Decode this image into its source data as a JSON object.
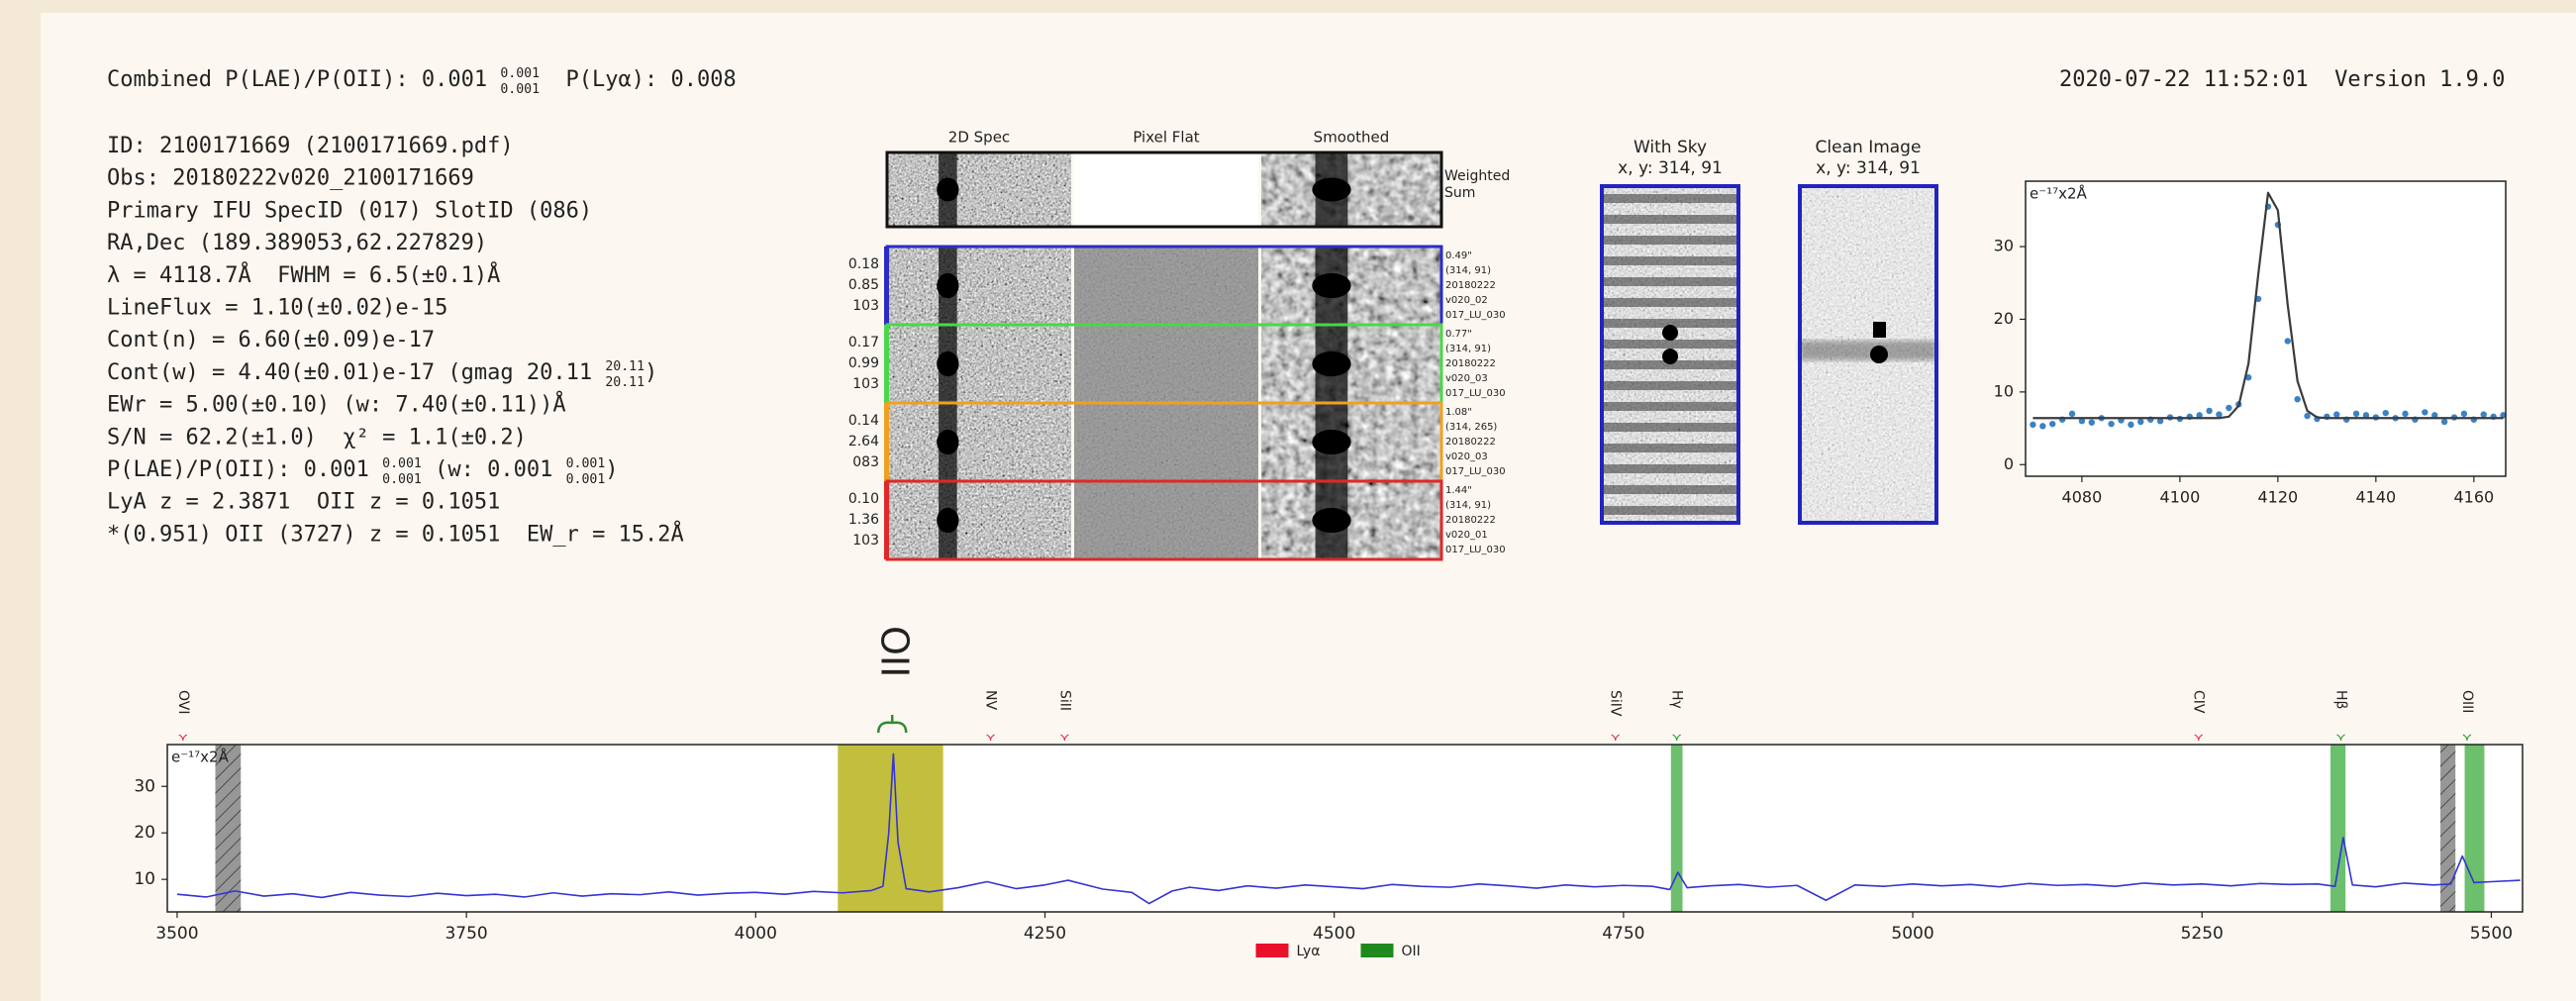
{
  "header": {
    "combined": [
      "Combined P(LAE)/P(OII): 0.001 ",
      {
        "sup": "0.001",
        "sub": "0.001"
      },
      "  P(Lyα): 0.008"
    ],
    "timestamp": "2020-07-22 11:52:01  Version 1.9.0"
  },
  "info_lines": [
    [
      "ID: 2100171669 (2100171669.pdf)"
    ],
    [
      "Obs: 20180222v020_2100171669"
    ],
    [
      "Primary IFU SpecID (017) SlotID (086)"
    ],
    [
      "RA,Dec (189.389053,62.227829)"
    ],
    [
      "λ = 4118.7Å  FWHM = 6.5(±0.1)Å"
    ],
    [
      "LineFlux = 1.10(±0.02)e-15"
    ],
    [
      "Cont(n) = 6.60(±0.09)e-17"
    ],
    [
      "Cont(w) = 4.40(±0.01)e-17 (gmag 20.11 ",
      {
        "sup": "20.11",
        "sub": "20.11"
      },
      ")"
    ],
    [
      "EWr = 5.00(±0.10) (w: 7.40(±0.11))Å"
    ],
    [
      "S/N = 62.2(±1.0)  χ² = 1.1(±0.2)"
    ],
    [
      "P(LAE)/P(OII): 0.001 ",
      {
        "sup": "0.001",
        "sub": "0.001"
      },
      " (w: 0.001 ",
      {
        "sup": "0.001",
        "sub": "0.001"
      },
      ")"
    ],
    [
      "LyA z = 2.3871  OII z = 0.1051"
    ],
    [
      "*(0.951) OII (3727) z = 0.1051  EW_r = 15.2Å"
    ]
  ],
  "cutouts": {
    "columns": [
      "2D Spec",
      "Pixel Flat",
      "Smoothed"
    ],
    "weighted_label": [
      "Weighted",
      "Sum"
    ],
    "rows": [
      {
        "color": "#2b2bc8",
        "left": [
          "0.18",
          "0.85",
          "103"
        ],
        "right": [
          "0.49\"",
          "(314, 91)",
          "20180222",
          "v020_02",
          "017_LU_030"
        ]
      },
      {
        "color": "#4cd64c",
        "left": [
          "0.17",
          "0.99",
          "103"
        ],
        "right": [
          "0.77\"",
          "(314, 91)",
          "20180222",
          "v020_03",
          "017_LU_030"
        ]
      },
      {
        "color": "#f0a020",
        "left": [
          "0.14",
          "2.64",
          "083"
        ],
        "right": [
          "1.08\"",
          "(314, 265)",
          "20180222",
          "v020_03",
          "017_LU_030"
        ]
      },
      {
        "color": "#e02828",
        "left": [
          "0.10",
          "1.36",
          "103"
        ],
        "right": [
          "1.44\"",
          "(314, 91)",
          "20180222",
          "v020_01",
          "017_LU_030"
        ]
      }
    ]
  },
  "images": [
    {
      "title": "With Sky",
      "coords": "x, y: 314, 91"
    },
    {
      "title": "Clean Image",
      "coords": "x, y: 314, 91"
    }
  ],
  "chart_data": [
    {
      "type": "line",
      "ylabel": "e⁻¹⁷x2Å",
      "x": [
        4070,
        4072,
        4074,
        4076,
        4078,
        4080,
        4082,
        4084,
        4086,
        4088,
        4090,
        4092,
        4094,
        4096,
        4098,
        4100,
        4102,
        4104,
        4106,
        4108,
        4110,
        4112,
        4114,
        4116,
        4118,
        4120,
        4122,
        4124,
        4126,
        4128,
        4130,
        4132,
        4134,
        4136,
        4138,
        4140,
        4142,
        4144,
        4146,
        4148,
        4150,
        4152,
        4154,
        4156,
        4158,
        4160,
        4162,
        4164,
        4166
      ],
      "series": [
        {
          "mode": "markers",
          "color": "#3a82c4",
          "values": [
            5.5,
            5.3,
            5.6,
            6.2,
            7.0,
            6.0,
            5.8,
            6.4,
            5.6,
            6.1,
            5.5,
            5.9,
            6.2,
            6.0,
            6.5,
            6.3,
            6.6,
            6.8,
            7.4,
            6.9,
            7.8,
            8.3,
            12.0,
            22.8,
            35.5,
            33.0,
            17.0,
            9.0,
            6.7,
            6.3,
            6.6,
            6.9,
            6.2,
            7.0,
            6.8,
            6.5,
            7.1,
            6.4,
            7.0,
            6.2,
            7.2,
            6.8,
            5.9,
            6.5,
            7.0,
            6.2,
            6.9,
            6.6,
            6.8
          ]
        },
        {
          "mode": "line",
          "color": "#3b3b3b",
          "values": [
            6.4,
            6.4,
            6.4,
            6.4,
            6.4,
            6.4,
            6.4,
            6.4,
            6.4,
            6.4,
            6.4,
            6.4,
            6.4,
            6.4,
            6.4,
            6.4,
            6.4,
            6.4,
            6.4,
            6.4,
            6.6,
            8.1,
            13.9,
            26.2,
            37.4,
            35.0,
            22.0,
            11.5,
            7.4,
            6.5,
            6.4,
            6.4,
            6.4,
            6.4,
            6.4,
            6.4,
            6.4,
            6.4,
            6.4,
            6.4,
            6.4,
            6.4,
            6.4,
            6.4,
            6.4,
            6.4,
            6.4,
            6.4,
            6.4
          ]
        }
      ],
      "xlim": [
        4068.5,
        4166.5
      ],
      "ylim": [
        -1.6,
        39
      ],
      "xticks": [
        4080,
        4100,
        4120,
        4140,
        4160
      ],
      "yticks": [
        0,
        10,
        20,
        30
      ]
    },
    {
      "type": "line",
      "ylabel": "e⁻¹⁷x2Å",
      "x": [
        3500,
        3525,
        3550,
        3575,
        3600,
        3625,
        3650,
        3675,
        3700,
        3725,
        3750,
        3775,
        3800,
        3825,
        3850,
        3875,
        3900,
        3925,
        3950,
        3975,
        4000,
        4025,
        4050,
        4075,
        4100,
        4110,
        4115,
        4119,
        4123,
        4130,
        4150,
        4175,
        4200,
        4225,
        4250,
        4270,
        4300,
        4325,
        4340,
        4360,
        4375,
        4400,
        4425,
        4450,
        4475,
        4500,
        4525,
        4550,
        4575,
        4600,
        4625,
        4650,
        4675,
        4700,
        4725,
        4750,
        4775,
        4790,
        4797,
        4805,
        4825,
        4850,
        4875,
        4900,
        4925,
        4950,
        4975,
        5000,
        5025,
        5050,
        5075,
        5100,
        5125,
        5150,
        5175,
        5200,
        5225,
        5250,
        5275,
        5300,
        5325,
        5350,
        5365,
        5372,
        5380,
        5400,
        5425,
        5450,
        5465,
        5475,
        5485,
        5500,
        5525
      ],
      "series": [
        {
          "mode": "line",
          "color": "#3434d4",
          "values": [
            6.8,
            6.2,
            7.5,
            6.4,
            6.9,
            6.1,
            7.2,
            6.6,
            6.3,
            7.0,
            6.5,
            6.8,
            6.2,
            7.1,
            6.4,
            6.9,
            6.7,
            7.3,
            6.6,
            7.0,
            7.2,
            6.8,
            7.4,
            7.1,
            7.6,
            8.5,
            20.0,
            37.0,
            18.0,
            8.0,
            7.3,
            8.2,
            9.5,
            8.0,
            8.8,
            9.8,
            7.9,
            7.2,
            4.8,
            7.5,
            8.3,
            7.6,
            8.6,
            8.1,
            8.8,
            8.4,
            8.0,
            8.9,
            8.5,
            8.3,
            9.0,
            8.6,
            8.1,
            8.8,
            8.4,
            8.7,
            8.5,
            7.8,
            11.5,
            8.2,
            8.6,
            8.9,
            8.3,
            8.7,
            5.5,
            8.8,
            8.5,
            9.0,
            8.6,
            8.9,
            8.4,
            9.1,
            8.7,
            8.9,
            8.5,
            9.2,
            8.8,
            9.0,
            8.6,
            9.1,
            8.9,
            9.0,
            8.5,
            19.0,
            8.8,
            8.4,
            9.2,
            8.8,
            9.0,
            15.0,
            9.3,
            9.5,
            9.8
          ]
        }
      ],
      "xlim": [
        3491.5,
        5527
      ],
      "ylim": [
        3,
        39
      ],
      "xticks": [
        3500,
        3750,
        4000,
        4250,
        4500,
        4750,
        5000,
        5250,
        5500
      ],
      "yticks": [
        10,
        20,
        30
      ],
      "bands": [
        {
          "from": 3533,
          "to": 3555,
          "color": "#8c8c8c",
          "hatch": true
        },
        {
          "from": 4071,
          "to": 4162,
          "color": "#bdb829",
          "hatch": false
        },
        {
          "from": 4791,
          "to": 4801,
          "color": "#5cb85c",
          "hatch": false
        },
        {
          "from": 5361,
          "to": 5374,
          "color": "#5cb85c",
          "hatch": false
        },
        {
          "from": 5456,
          "to": 5469,
          "color": "#8c8c8c",
          "hatch": true
        },
        {
          "from": 5477,
          "to": 5494,
          "color": "#5cb85c",
          "hatch": false
        }
      ],
      "line_labels": [
        {
          "label": "OVI",
          "x": 3505,
          "color": "#e0304a"
        },
        {
          "label": "NV",
          "x": 4203,
          "color": "#e0304a"
        },
        {
          "label": "SiII",
          "x": 4267,
          "color": "#e0304a"
        },
        {
          "label": "SiIV",
          "x": 4743,
          "color": "#e0304a"
        },
        {
          "label": "Hγ",
          "x": 4796,
          "color": "#2e9a2e"
        },
        {
          "label": "CIV",
          "x": 5247,
          "color": "#e0304a"
        },
        {
          "label": "Hβ",
          "x": 5370,
          "color": "#2e9a2e"
        },
        {
          "label": "OIII",
          "x": 5479,
          "color": "#2e9a2e"
        }
      ],
      "redshift_line": {
        "label": "OII",
        "x": 4118,
        "color": "#2e8b2e"
      },
      "legend_entries": [
        {
          "name": "Lyα",
          "color": "#e8102a"
        },
        {
          "name": "OII",
          "color": "#1e8a1e"
        }
      ]
    }
  ]
}
